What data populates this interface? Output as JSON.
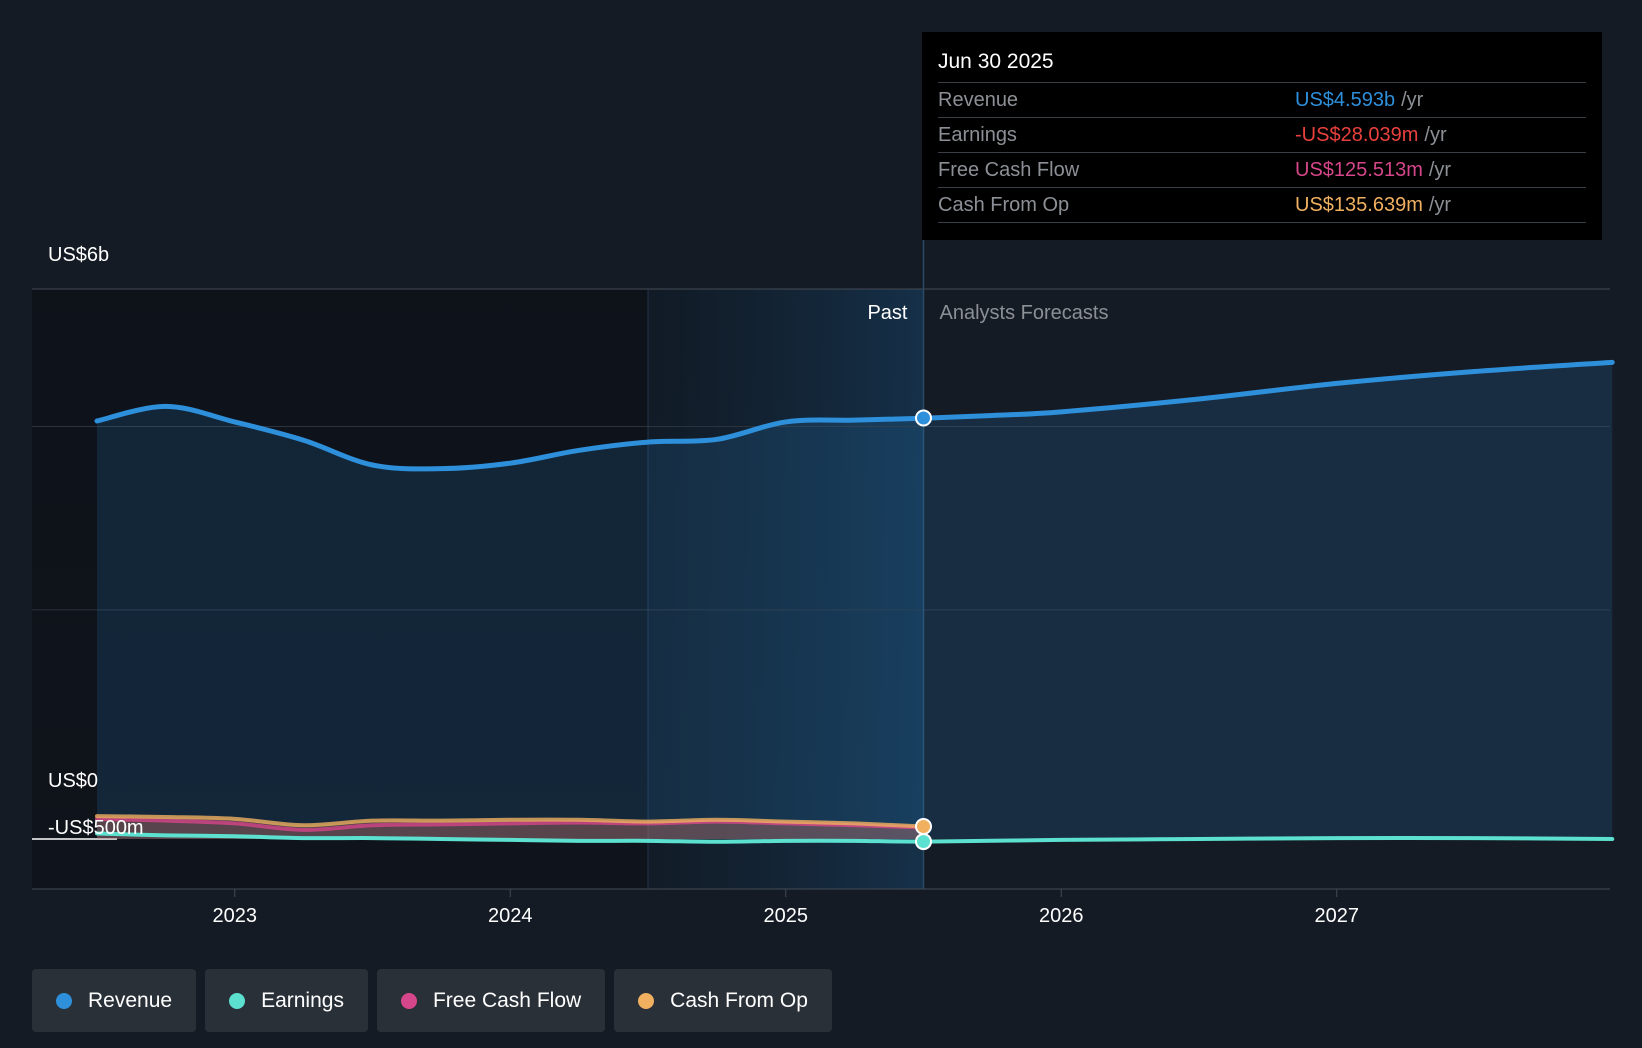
{
  "tooltip": {
    "date": "Jun 30 2025",
    "rows": [
      {
        "label": "Revenue",
        "value": "US$4.593b",
        "unit": "/yr",
        "color": "#2e8fdb"
      },
      {
        "label": "Earnings",
        "value": "-US$28.039m",
        "unit": "/yr",
        "color": "#e8413e"
      },
      {
        "label": "Free Cash Flow",
        "value": "US$125.513m",
        "unit": "/yr",
        "color": "#d6468a"
      },
      {
        "label": "Cash From Op",
        "value": "US$135.639m",
        "unit": "/yr",
        "color": "#f0b060"
      }
    ]
  },
  "labels": {
    "past": "Past",
    "forecast": "Analysts Forecasts"
  },
  "legend": [
    {
      "label": "Revenue",
      "color": "#2e8fdb"
    },
    {
      "label": "Earnings",
      "color": "#5ce0cf"
    },
    {
      "label": "Free Cash Flow",
      "color": "#d6468a"
    },
    {
      "label": "Cash From Op",
      "color": "#f0b060"
    }
  ],
  "chart_data": {
    "type": "area",
    "y_tick_labels": [
      "US$6b",
      "US$0",
      "-US$500m"
    ],
    "y_ticks": [
      6000,
      0,
      -500
    ],
    "ylim": [
      -500,
      6000
    ],
    "x_ticks": [
      2023,
      2024,
      2025,
      2026,
      2027
    ],
    "xlim": [
      2022.5,
      2028.0
    ],
    "highlight_start": 2024.5,
    "now": 2025.5,
    "series": [
      {
        "name": "Revenue",
        "color": "#2e8fdb",
        "x": [
          2022.5,
          2022.75,
          2023.0,
          2023.25,
          2023.5,
          2023.75,
          2024.0,
          2024.25,
          2024.5,
          2024.75,
          2025.0,
          2025.25,
          2025.5,
          2025.75,
          2026.0,
          2026.5,
          2027.0,
          2027.5,
          2028.0
        ],
        "y": [
          4.56,
          4.72,
          4.55,
          4.35,
          4.08,
          4.04,
          4.1,
          4.24,
          4.33,
          4.36,
          4.55,
          4.57,
          4.59,
          4.62,
          4.66,
          4.8,
          4.97,
          5.1,
          5.2
        ]
      },
      {
        "name": "Earnings",
        "color": "#5ce0cf",
        "x": [
          2022.5,
          2022.75,
          2023.0,
          2023.25,
          2023.5,
          2023.75,
          2024.0,
          2024.25,
          2024.5,
          2024.75,
          2025.0,
          2025.25,
          2025.5,
          2026.0,
          2026.5,
          2027.0,
          2027.5,
          2028.0
        ],
        "y": [
          0.06,
          0.04,
          0.03,
          0.01,
          0.01,
          0.0,
          -0.01,
          -0.02,
          -0.02,
          -0.03,
          -0.02,
          -0.02,
          -0.028,
          -0.01,
          0.0,
          0.01,
          0.01,
          0.0
        ]
      },
      {
        "name": "Free Cash Flow",
        "color": "#d6468a",
        "x": [
          2022.5,
          2022.75,
          2023.0,
          2023.25,
          2023.5,
          2023.75,
          2024.0,
          2024.25,
          2024.5,
          2024.75,
          2025.0,
          2025.25,
          2025.5
        ],
        "y": [
          0.22,
          0.2,
          0.17,
          0.1,
          0.15,
          0.16,
          0.17,
          0.18,
          0.17,
          0.19,
          0.17,
          0.15,
          0.126
        ]
      },
      {
        "name": "Cash From Op",
        "color": "#f0b060",
        "x": [
          2022.5,
          2022.75,
          2023.0,
          2023.25,
          2023.5,
          2023.75,
          2024.0,
          2024.25,
          2024.5,
          2024.75,
          2025.0,
          2025.25,
          2025.5
        ],
        "y": [
          0.25,
          0.24,
          0.22,
          0.15,
          0.2,
          0.2,
          0.21,
          0.21,
          0.19,
          0.21,
          0.19,
          0.17,
          0.136
        ]
      }
    ]
  }
}
